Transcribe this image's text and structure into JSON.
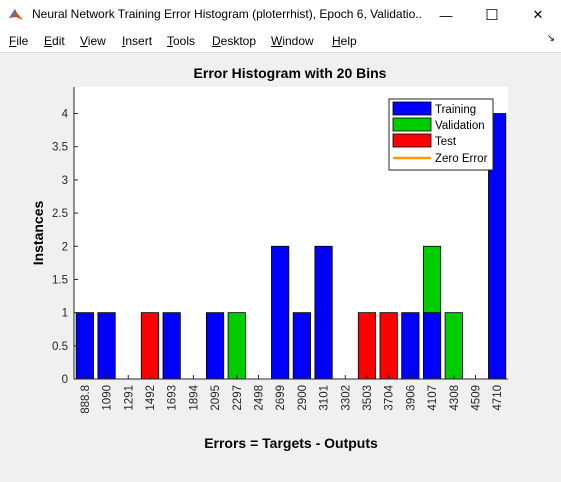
{
  "window": {
    "title": "Neural Network Training Error Histogram (ploterrhist), Epoch 6, Validatio...",
    "minimize_glyph": "—",
    "maximize_glyph": "☐",
    "close_glyph": "✕",
    "app_icon": "matlab-icon"
  },
  "menu": {
    "items": [
      {
        "key": "F",
        "rest": "ile"
      },
      {
        "key": "E",
        "rest": "dit"
      },
      {
        "key": "V",
        "rest": "iew"
      },
      {
        "key": "I",
        "rest": "nsert"
      },
      {
        "key": "T",
        "rest": "ools"
      },
      {
        "key": "D",
        "rest": "esktop"
      },
      {
        "key": "W",
        "rest": "indow"
      },
      {
        "key": "H",
        "rest": "elp"
      }
    ],
    "dock_glyph": "↘"
  },
  "chart_data": {
    "type": "bar",
    "title": "Error Histogram with 20 Bins",
    "xlabel": "Errors = Targets - Outputs",
    "ylabel": "Instances",
    "categories": [
      "888.8",
      "1090",
      "1291",
      "1492",
      "1693",
      "1894",
      "2095",
      "2297",
      "2498",
      "2699",
      "2900",
      "3101",
      "3302",
      "3503",
      "3704",
      "3906",
      "4107",
      "4308",
      "4509",
      "4710"
    ],
    "series": [
      {
        "name": "Training",
        "color": "#0000ff",
        "values": [
          1,
          1,
          0,
          0,
          1,
          0,
          1,
          0,
          0,
          2,
          1,
          2,
          0,
          0,
          0,
          1,
          1,
          0,
          0,
          4
        ]
      },
      {
        "name": "Validation",
        "color": "#00cc00",
        "values": [
          0,
          0,
          0,
          0,
          0,
          0,
          0,
          1,
          0,
          0,
          0,
          0,
          0,
          0,
          0,
          0,
          1,
          1,
          0,
          0
        ]
      },
      {
        "name": "Test",
        "color": "#ff0000",
        "values": [
          0,
          0,
          0,
          1,
          0,
          0,
          0,
          0,
          0,
          0,
          0,
          0,
          0,
          1,
          1,
          0,
          0,
          0,
          0,
          0
        ]
      }
    ],
    "zero_error": {
      "name": "Zero Error",
      "color": "#ff9900"
    },
    "stacked": true,
    "ylim": [
      0,
      4.4
    ],
    "yticks": [
      "0",
      "0.5",
      "1",
      "1.5",
      "2",
      "2.5",
      "3",
      "3.5",
      "4"
    ],
    "ytick_values": [
      0,
      0.5,
      1,
      1.5,
      2,
      2.5,
      3,
      3.5,
      4
    ],
    "legend_position": "top-right",
    "grid": false
  }
}
